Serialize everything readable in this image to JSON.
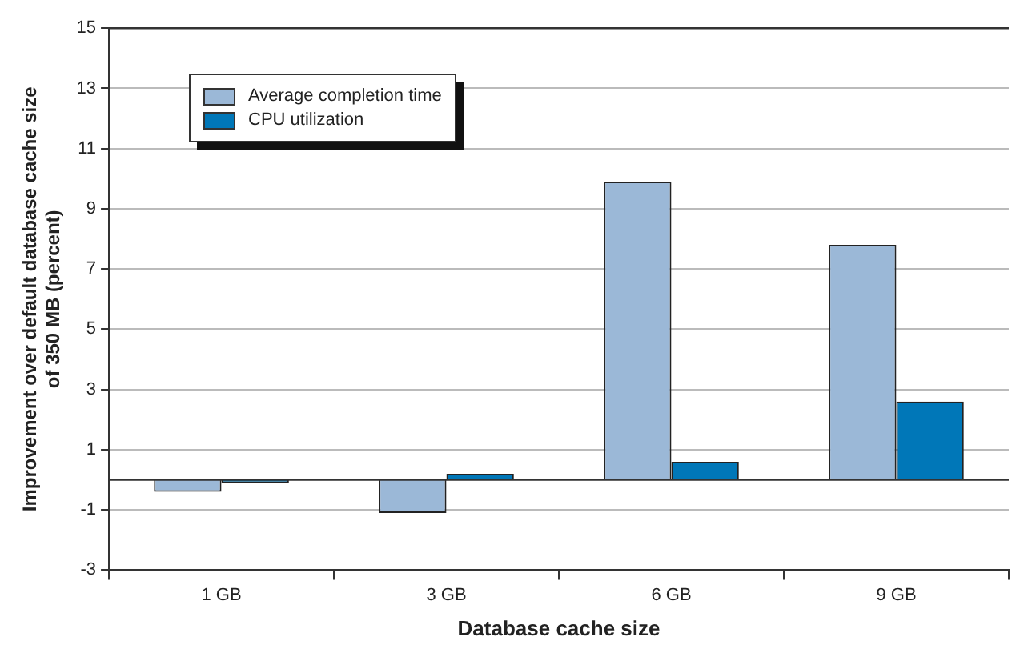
{
  "chart_data": {
    "type": "bar",
    "xlabel": "Database cache size",
    "ylabel": "Improvement over default database cache size\nof 350 MB (percent)",
    "categories": [
      "1 GB",
      "3 GB",
      "6 GB",
      "9 GB"
    ],
    "series": [
      {
        "name": "Average completion time",
        "color": "#9bb8d7",
        "values": [
          -0.4,
          -1.1,
          9.9,
          7.8
        ]
      },
      {
        "name": "CPU utilization",
        "color": "#0077b8",
        "values": [
          -0.1,
          0.2,
          0.6,
          2.6
        ]
      }
    ],
    "ylim": [
      -3,
      15
    ],
    "yticks": [
      -3,
      -1,
      1,
      3,
      5,
      7,
      9,
      11,
      13,
      15
    ],
    "grid": "y",
    "legend": "top left"
  }
}
